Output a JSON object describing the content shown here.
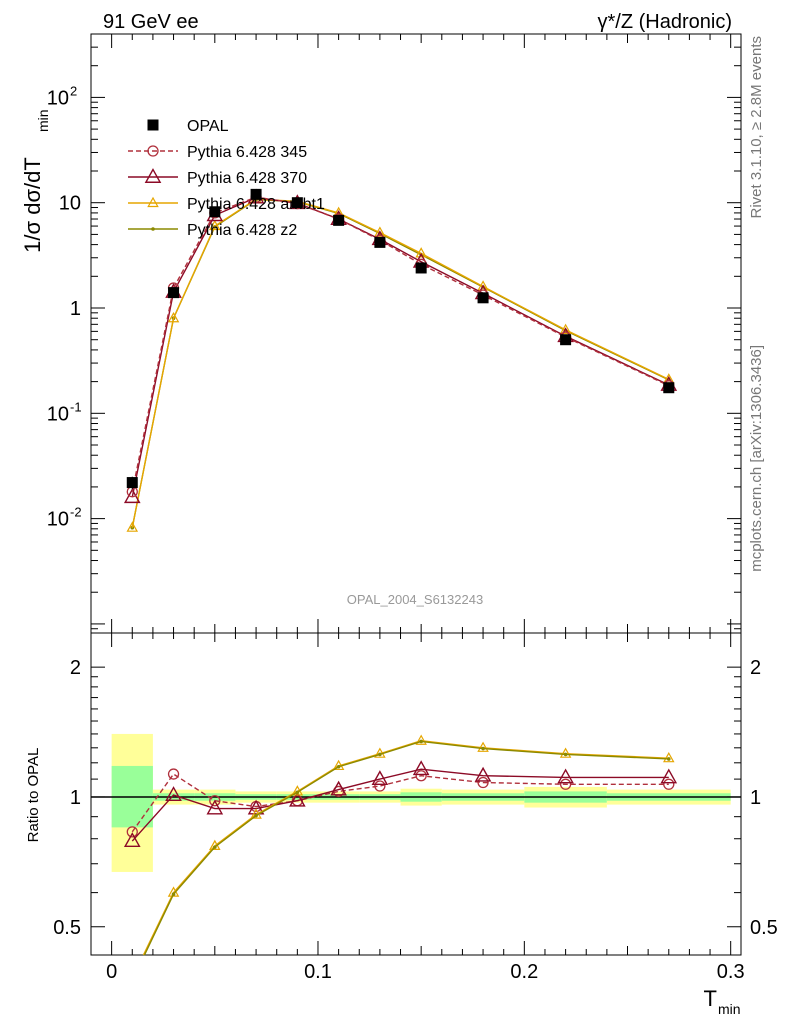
{
  "header": {
    "left": "91 GeV ee",
    "right": "γ*/Z (Hadronic)"
  },
  "side_labels": {
    "rivet": "Rivet 3.1.10, ≥ 2.8M events",
    "mcplots": "mcplots.cern.ch [arXiv:1306.3436]"
  },
  "watermark": "OPAL_2004_S6132243",
  "colors": {
    "opal": "#000000",
    "p345": "#b0303c",
    "p370": "#8c0a26",
    "ambt1": "#e6a600",
    "z2": "#8c8a00",
    "band_inner": "#99ff99",
    "band_outer": "#ffff99"
  },
  "chart_data": [
    {
      "type": "line",
      "panel": "main",
      "ylabel": "1/σ dσ/dT_min",
      "yscale": "log",
      "xlim": [
        -0.01,
        0.305
      ],
      "ylim": [
        0.00082,
        400
      ],
      "x_ticks": [
        "0",
        "0.1",
        "0.2",
        "0.3"
      ],
      "y_ticks": [
        "10^-2",
        "10^-1",
        "1",
        "10",
        "10^2"
      ],
      "legend_position": "top-left",
      "x": [
        0.01,
        0.03,
        0.05,
        0.07,
        0.09,
        0.11,
        0.13,
        0.15,
        0.18,
        0.22,
        0.27
      ],
      "series": [
        {
          "name": "OPAL",
          "style": "square-markers",
          "values": [
            0.022,
            1.4,
            8.2,
            12.0,
            10.0,
            6.8,
            4.2,
            2.4,
            1.25,
            0.5,
            0.175
          ],
          "errors": [
            0.003,
            0.05,
            0.2,
            0.2,
            0.2,
            0.1,
            0.1,
            0.05,
            0.03,
            0.01,
            0.005
          ]
        },
        {
          "name": "Pythia 6.428 345",
          "style": "dashed-circles",
          "values": [
            0.018,
            1.55,
            8.0,
            11.3,
            9.8,
            7.0,
            4.4,
            2.6,
            1.33,
            0.53,
            0.183
          ]
        },
        {
          "name": "Pythia 6.428 370",
          "style": "triangles-open",
          "values": [
            0.016,
            1.42,
            7.6,
            11.2,
            9.9,
            7.0,
            4.5,
            2.75,
            1.38,
            0.54,
            0.186
          ]
        },
        {
          "name": "Pythia 6.428 ambt1",
          "style": "triangles-small",
          "values": [
            0.0082,
            0.8,
            6.0,
            10.8,
            10.3,
            8.0,
            5.2,
            3.3,
            1.6,
            0.62,
            0.21
          ]
        },
        {
          "name": "Pythia 6.428 z2",
          "style": "dots",
          "values": [
            0.0082,
            0.8,
            5.9,
            10.7,
            10.2,
            7.9,
            5.1,
            3.2,
            1.58,
            0.61,
            0.208
          ]
        }
      ]
    },
    {
      "type": "line",
      "panel": "ratio",
      "xlabel": "T_min",
      "ylabel": "Ratio to OPAL",
      "yscale": "log",
      "ylim": [
        0.43,
        2.4
      ],
      "y_ticks": [
        "0.5",
        "1",
        "2"
      ],
      "bands": [
        {
          "xlo": 0.0,
          "xhi": 0.02,
          "inner": [
            0.85,
            1.18
          ],
          "outer": [
            0.67,
            1.4
          ]
        },
        {
          "xlo": 0.02,
          "xhi": 0.04,
          "inner": [
            0.98,
            1.02
          ],
          "outer": [
            0.96,
            1.04
          ]
        },
        {
          "xlo": 0.04,
          "xhi": 0.06,
          "inner": [
            0.98,
            1.02
          ],
          "outer": [
            0.96,
            1.04
          ]
        },
        {
          "xlo": 0.06,
          "xhi": 0.08,
          "inner": [
            0.985,
            1.015
          ],
          "outer": [
            0.97,
            1.03
          ]
        },
        {
          "xlo": 0.08,
          "xhi": 0.1,
          "inner": [
            0.985,
            1.015
          ],
          "outer": [
            0.97,
            1.03
          ]
        },
        {
          "xlo": 0.1,
          "xhi": 0.12,
          "inner": [
            0.985,
            1.015
          ],
          "outer": [
            0.97,
            1.03
          ]
        },
        {
          "xlo": 0.12,
          "xhi": 0.14,
          "inner": [
            0.985,
            1.015
          ],
          "outer": [
            0.97,
            1.03
          ]
        },
        {
          "xlo": 0.14,
          "xhi": 0.16,
          "inner": [
            0.975,
            1.025
          ],
          "outer": [
            0.955,
            1.045
          ]
        },
        {
          "xlo": 0.16,
          "xhi": 0.2,
          "inner": [
            0.98,
            1.02
          ],
          "outer": [
            0.96,
            1.04
          ]
        },
        {
          "xlo": 0.2,
          "xhi": 0.24,
          "inner": [
            0.97,
            1.03
          ],
          "outer": [
            0.945,
            1.055
          ]
        },
        {
          "xlo": 0.24,
          "xhi": 0.3,
          "inner": [
            0.98,
            1.02
          ],
          "outer": [
            0.96,
            1.04
          ]
        }
      ],
      "x": [
        0.01,
        0.03,
        0.05,
        0.07,
        0.09,
        0.11,
        0.13,
        0.15,
        0.18,
        0.22,
        0.27
      ],
      "series": [
        {
          "name": "Pythia 6.428 345",
          "values": [
            0.83,
            1.13,
            0.98,
            0.95,
            0.98,
            1.03,
            1.06,
            1.12,
            1.08,
            1.07,
            1.07
          ]
        },
        {
          "name": "Pythia 6.428 370",
          "values": [
            0.79,
            1.01,
            0.94,
            0.94,
            0.98,
            1.04,
            1.1,
            1.16,
            1.12,
            1.11,
            1.11
          ]
        },
        {
          "name": "Pythia 6.428 ambt1",
          "values": [
            0.38,
            0.6,
            0.77,
            0.91,
            1.03,
            1.18,
            1.26,
            1.35,
            1.3,
            1.26,
            1.23
          ]
        },
        {
          "name": "Pythia 6.428 z2",
          "values": [
            0.375,
            0.595,
            0.765,
            0.905,
            1.025,
            1.175,
            1.255,
            1.345,
            1.295,
            1.255,
            1.225
          ]
        }
      ]
    }
  ]
}
